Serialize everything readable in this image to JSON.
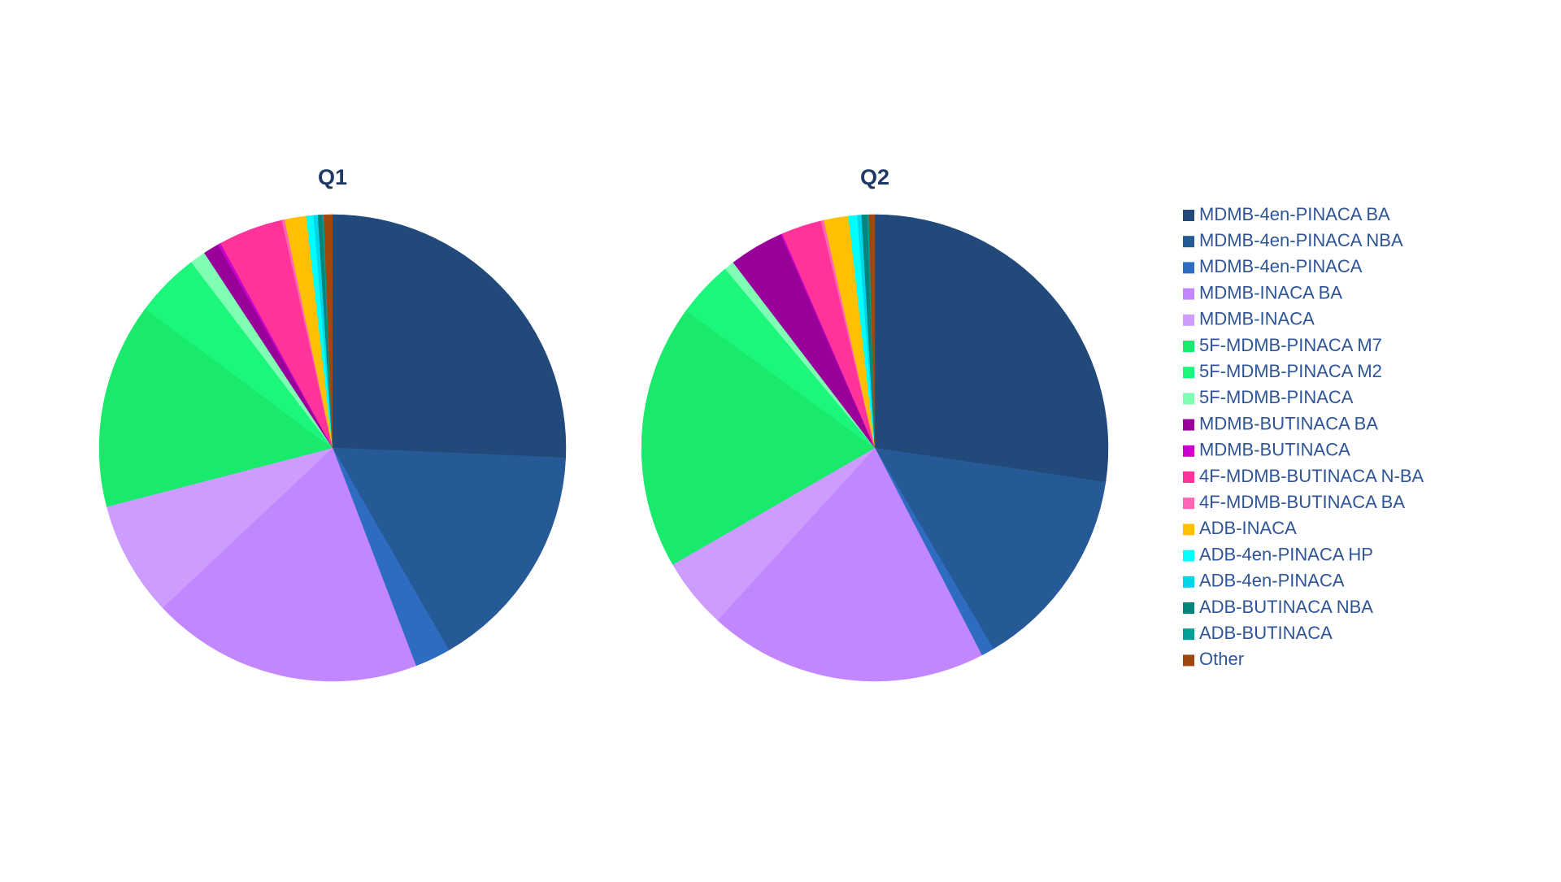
{
  "chart_data": {
    "type": "pie",
    "categories": [
      "MDMB-4en-PINACA BA",
      "MDMB-4en-PINACA NBA",
      "MDMB-4en-PINACA",
      "MDMB-INACA BA",
      "MDMB-INACA",
      "5F-MDMB-PINACA M7",
      "5F-MDMB-PINACA M2",
      "5F-MDMB-PINACA",
      "MDMB-BUTINACA BA",
      "MDMB-BUTINACA",
      "4F-MDMB-BUTINACA N-BA",
      "4F-MDMB-BUTINACA BA",
      "ADB-INACA",
      "ADB-4en-PINACA HP",
      "ADB-4en-PINACA",
      "ADB-BUTINACA NBA",
      "ADB-BUTINACA",
      "Other"
    ],
    "colors": [
      "#21497a",
      "#265a96",
      "#2d6cc0",
      "#c286ff",
      "#cc9cff",
      "#1aea6c",
      "#1cf77c",
      "#80ffb4",
      "#990099",
      "#cc00cc",
      "#ff3399",
      "#ff66b3",
      "#ffc000",
      "#00ffff",
      "#00d6e8",
      "#00857c",
      "#009e96",
      "#9e480e"
    ],
    "series": [
      {
        "name": "Q1",
        "values": [
          25.8,
          16.1,
          2.5,
          18.9,
          8.0,
          14.3,
          4.5,
          1.1,
          1.1,
          0.2,
          4.5,
          0.2,
          1.5,
          0.5,
          0.3,
          0.3,
          0.1,
          0.6
        ]
      },
      {
        "name": "Q2",
        "values": [
          27.4,
          14.2,
          0.9,
          19.4,
          4.9,
          18.4,
          3.9,
          0.7,
          3.8,
          0.1,
          2.8,
          0.2,
          1.7,
          0.6,
          0.3,
          0.4,
          0.1,
          0.4
        ]
      }
    ]
  }
}
